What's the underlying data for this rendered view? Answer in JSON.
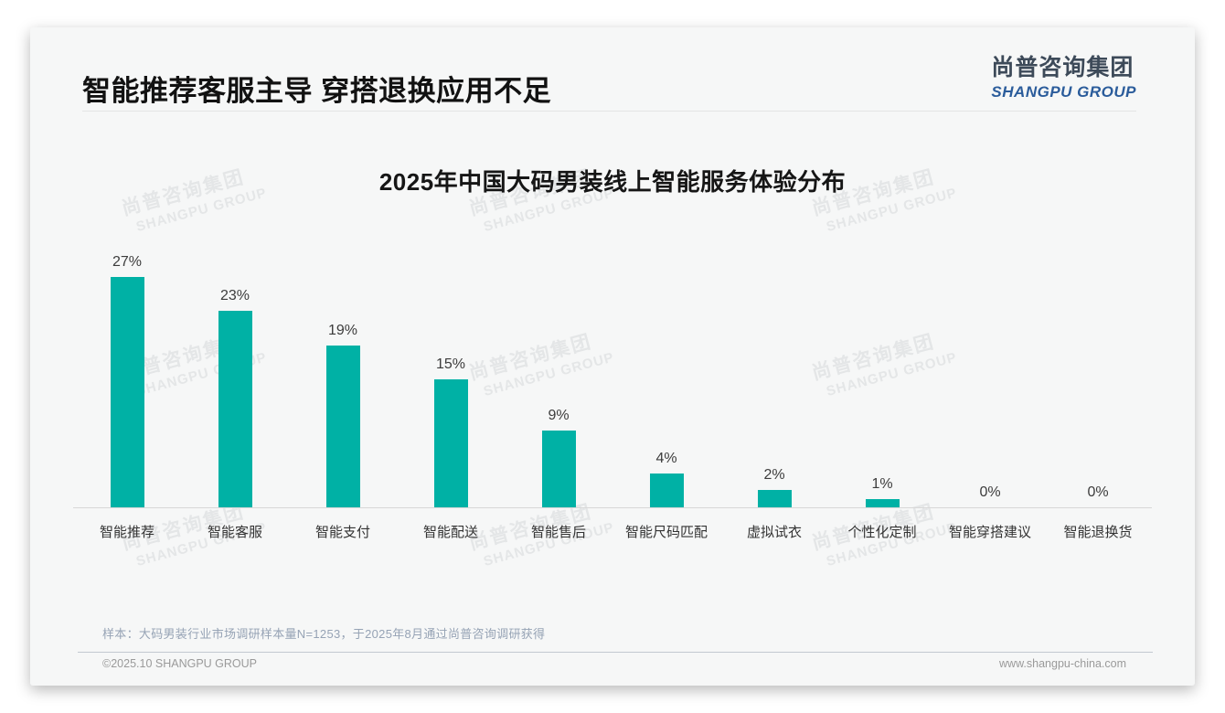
{
  "header": {
    "title": "智能推荐客服主导 穿搭退换应用不足",
    "logo": {
      "cn": "尚普咨询集团",
      "en": "SHANGPU GROUP"
    }
  },
  "chart_data": {
    "type": "bar",
    "title": "2025年中国大码男装线上智能服务体验分布",
    "categories": [
      "智能推荐",
      "智能客服",
      "智能支付",
      "智能配送",
      "智能售后",
      "智能尺码匹配",
      "虚拟试衣",
      "个性化定制",
      "智能穿搭建议",
      "智能退换货"
    ],
    "values": [
      27,
      23,
      19,
      15,
      9,
      4,
      2,
      1,
      0,
      0
    ],
    "value_labels": [
      "27%",
      "23%",
      "19%",
      "15%",
      "9%",
      "4%",
      "2%",
      "1%",
      "0%",
      "0%"
    ],
    "unit": "%",
    "xlabel": "",
    "ylabel": "",
    "ylim": [
      0,
      30
    ],
    "grid": false,
    "legend": false,
    "bar_color": "#00b1a5",
    "axis_color": "#d8d8d8"
  },
  "watermark": {
    "cn": "尚普咨询集团",
    "en": "SHANGPU GROUP"
  },
  "footnote": "样本：大码男装行业市场调研样本量N=1253，于2025年8月通过尚普咨询调研获得",
  "footer": {
    "copyright": "©2025.10 SHANGPU GROUP",
    "website": "www.shangpu-china.com"
  }
}
